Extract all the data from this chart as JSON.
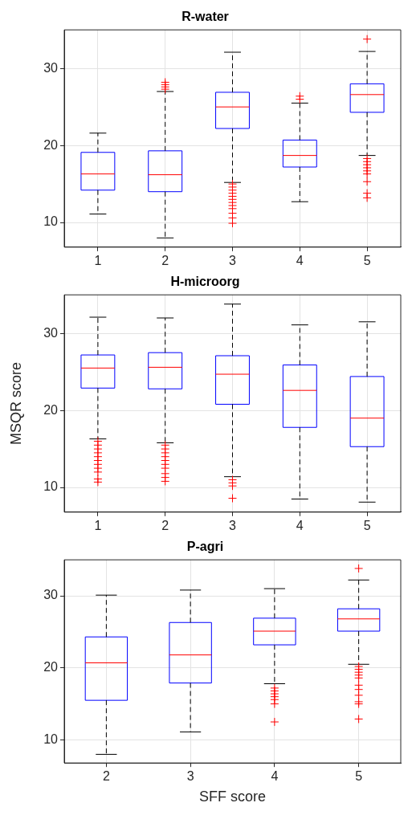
{
  "chart_data": [
    {
      "type": "box",
      "title": "R-water",
      "categories": [
        "1",
        "2",
        "3",
        "4",
        "5"
      ],
      "color": "#0000ff",
      "ylim": [
        6.8,
        35
      ],
      "yticks": [
        10,
        20,
        30
      ],
      "grid": true,
      "marker": "cross",
      "tick_labels": "xy",
      "boxes": [
        {
          "low": 11.1,
          "q1": 14.2,
          "median": 16.3,
          "q3": 19.1,
          "high": 21.6
        },
        {
          "low": 8.0,
          "q1": 14.0,
          "median": 16.2,
          "q3": 19.3,
          "high": 27.0,
          "outliers": [
            27.3,
            27.6,
            27.9,
            28.2
          ]
        },
        {
          "low": 15.2,
          "q1": 22.2,
          "median": 25.0,
          "q3": 26.9,
          "high": 32.1,
          "outliers": [
            15.0,
            14.6,
            14.2,
            13.8,
            13.4,
            13.0,
            12.6,
            12.2,
            11.8,
            11.2,
            10.6,
            9.9
          ]
        },
        {
          "low": 12.7,
          "q1": 17.2,
          "median": 18.7,
          "q3": 20.7,
          "high": 25.5,
          "outliers": [
            26.0,
            26.4
          ]
        },
        {
          "low": 18.7,
          "q1": 24.3,
          "median": 26.6,
          "q3": 28.0,
          "high": 32.2,
          "outliers": [
            33.8,
            18.3,
            17.9,
            17.5,
            17.1,
            16.7,
            16.3,
            15.3,
            13.8,
            13.2
          ]
        }
      ]
    },
    {
      "type": "box",
      "title": "H-microorg",
      "ylabel": "MSQR score",
      "categories": [
        "1",
        "2",
        "3",
        "4",
        "5"
      ],
      "color": "#0000ff",
      "ylim": [
        6.8,
        35
      ],
      "yticks": [
        10,
        20,
        30
      ],
      "grid": true,
      "marker": "cross",
      "boxes": [
        {
          "low": 16.3,
          "q1": 22.9,
          "median": 25.5,
          "q3": 27.2,
          "high": 32.1,
          "outliers": [
            16.0,
            15.5,
            15.0,
            14.5,
            14.0,
            13.5,
            13.0,
            12.5,
            12.0,
            11.1,
            10.7
          ]
        },
        {
          "low": 15.8,
          "q1": 22.8,
          "median": 25.6,
          "q3": 27.5,
          "high": 32.0,
          "outliers": [
            15.5,
            15.0,
            14.5,
            14.0,
            13.5,
            13.0,
            12.5,
            11.8,
            11.3,
            10.8
          ]
        },
        {
          "low": 11.4,
          "q1": 20.8,
          "median": 24.7,
          "q3": 27.1,
          "high": 33.8,
          "outliers": [
            11.0,
            10.6,
            10.2,
            8.6
          ]
        },
        {
          "low": 8.5,
          "q1": 17.8,
          "median": 22.6,
          "q3": 25.9,
          "high": 31.1
        },
        {
          "low": 8.1,
          "q1": 15.3,
          "median": 19.0,
          "q3": 24.4,
          "high": 31.5
        }
      ]
    },
    {
      "type": "box",
      "title": "P-agri",
      "xlabel": "SFF score",
      "categories": [
        "2",
        "3",
        "4",
        "5"
      ],
      "color": "#0000ff",
      "ylim": [
        6.8,
        35
      ],
      "yticks": [
        10,
        20,
        30
      ],
      "grid": true,
      "marker": "cross",
      "boxes": [
        {
          "low": 8.0,
          "q1": 15.5,
          "median": 20.7,
          "q3": 24.3,
          "high": 30.1
        },
        {
          "low": 11.1,
          "q1": 17.9,
          "median": 21.8,
          "q3": 26.3,
          "high": 30.8
        },
        {
          "low": 17.8,
          "q1": 23.2,
          "median": 25.1,
          "q3": 26.9,
          "high": 31.0,
          "outliers": [
            17.2,
            16.8,
            16.4,
            16.0,
            15.6,
            15.0,
            12.5
          ]
        },
        {
          "low": 20.5,
          "q1": 25.1,
          "median": 26.8,
          "q3": 28.2,
          "high": 32.2,
          "outliers": [
            33.8,
            20.2,
            19.8,
            19.4,
            19.0,
            18.6,
            17.6,
            17.0,
            16.2,
            15.3,
            15.0,
            12.9
          ]
        }
      ]
    }
  ]
}
